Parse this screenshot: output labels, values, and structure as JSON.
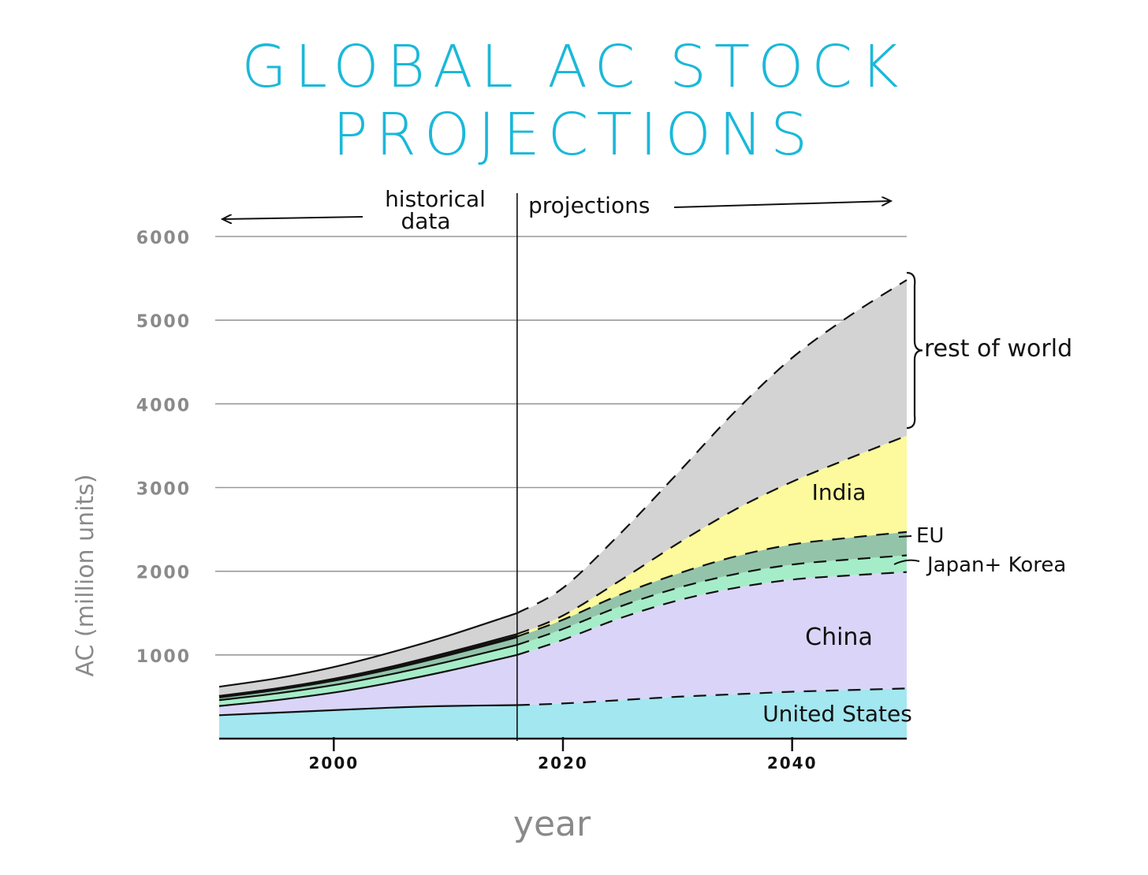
{
  "chart_data": {
    "type": "area",
    "title": "GLOBAL AC STOCK PROJECTIONS",
    "xlabel": "year",
    "ylabel": "AC (million units)",
    "x_tick_labels": [
      "2000",
      "2020",
      "2040"
    ],
    "y_tick_labels": [
      "1000",
      "2000",
      "3000",
      "4000",
      "5000",
      "6000"
    ],
    "xlim": [
      1990,
      2050
    ],
    "ylim": [
      0,
      6000
    ],
    "grid": true,
    "stacked": true,
    "x": [
      1990,
      1995,
      2000,
      2005,
      2010,
      2016,
      2020,
      2025,
      2030,
      2035,
      2040,
      2045,
      2050
    ],
    "projection_start": 2016,
    "regions": {
      "historical": "historical\ndata",
      "projections": "projections"
    },
    "series": [
      {
        "name": "United States",
        "color": "#a3e7f0",
        "values": [
          280,
          310,
          340,
          370,
          390,
          400,
          420,
          460,
          500,
          530,
          560,
          580,
          600
        ]
      },
      {
        "name": "China",
        "color": "#dad5f8",
        "values": [
          110,
          150,
          210,
          300,
          420,
          600,
          760,
          980,
          1150,
          1270,
          1340,
          1370,
          1390
        ]
      },
      {
        "name": "Japan+ Korea",
        "color": "#a5edc8",
        "values": [
          70,
          80,
          90,
          100,
          110,
          120,
          130,
          140,
          150,
          165,
          180,
          190,
          200
        ]
      },
      {
        "name": "EU",
        "color": "#93c4aa",
        "values": [
          40,
          50,
          60,
          70,
          85,
          100,
          110,
          140,
          170,
          210,
          240,
          260,
          280
        ]
      },
      {
        "name": "India",
        "color": "#fcfa9c",
        "values": [
          10,
          10,
          15,
          20,
          25,
          30,
          50,
          170,
          360,
          560,
          750,
          950,
          1150
        ]
      },
      {
        "name": "rest of world",
        "color": "#d3d3d3",
        "values": [
          110,
          120,
          140,
          170,
          200,
          250,
          330,
          560,
          840,
          1170,
          1480,
          1700,
          1860
        ]
      }
    ],
    "axis_color": "#111111",
    "grid_color": "#999999",
    "title_color": "#1bb8d9"
  }
}
